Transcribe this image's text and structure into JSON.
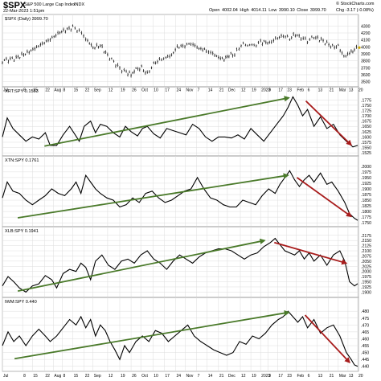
{
  "header": {
    "symbol": "$SPX",
    "description": "S&P 500 Large Cap Index",
    "exchange": "INDX",
    "datetime": "22-Mar-2023 1:51pm",
    "ohlc": "Open 4002.04  High 4014.11  Low 3990.10  Close 3999.70",
    "watermark": "© StockCharts.com",
    "change": "Chg -3.17 (-0.08%)"
  },
  "colors": {
    "up_arrow": "#4a7a2a",
    "down_arrow": "#a81c1c",
    "price_marker": "#c9a400",
    "line": "#000000",
    "grid": "#dddddd"
  },
  "x_axis": {
    "labels": [
      "Jul",
      "8",
      "15",
      "22",
      "Aug",
      "8",
      "15",
      "22",
      "Sep",
      "12",
      "19",
      "26",
      "Oct",
      "10",
      "17",
      "24",
      "Nov",
      "7",
      "14",
      "21",
      "Dec",
      "12",
      "19",
      "2023",
      "9",
      "17",
      "23",
      "Feb",
      "6",
      "13",
      "21",
      "Mar",
      "13",
      "20"
    ],
    "label_positions": [
      3,
      28,
      40,
      55,
      66,
      77,
      90,
      104,
      115,
      133,
      148,
      162,
      174,
      189,
      203,
      217,
      229,
      243,
      256,
      270,
      281,
      297,
      310,
      322,
      331,
      343,
      354,
      366,
      379,
      392,
      406,
      418,
      430,
      442
    ]
  },
  "chart_data": [
    {
      "type": "ohlc",
      "title": "$SPX (Daily) 3999.70",
      "ylim": [
        3450,
        4350
      ],
      "y_ticks": [
        3500,
        3600,
        3700,
        3800,
        3900,
        4000,
        4100,
        4200,
        4300
      ],
      "y_tick_labels": [
        "3500",
        "3600",
        "3700",
        "3800",
        "3900",
        "4000",
        "4100",
        "4200",
        "4300"
      ],
      "x": [
        3,
        20,
        36,
        50,
        62,
        74,
        90,
        98,
        106,
        115,
        124,
        133,
        148,
        156,
        162,
        168,
        175,
        182,
        190,
        197,
        205,
        212,
        219,
        226,
        236,
        246,
        255,
        263,
        270,
        277,
        283,
        290,
        298,
        306,
        314,
        322,
        333,
        343,
        350,
        358,
        365,
        372,
        380,
        388,
        397,
        404,
        411,
        418,
        425,
        432,
        438,
        443
      ],
      "values": [
        3800,
        3840,
        3930,
        4030,
        4110,
        4210,
        4280,
        4230,
        4120,
        3990,
        4020,
        3880,
        3690,
        3640,
        3600,
        3680,
        3700,
        3610,
        3760,
        3810,
        3850,
        3880,
        4000,
        4010,
        4050,
        3980,
        3950,
        3900,
        3850,
        3820,
        3880,
        3890,
        4030,
        4030,
        4020,
        4070,
        4060,
        4130,
        4160,
        4120,
        4180,
        4130,
        4090,
        4140,
        4100,
        4050,
        4000,
        4010,
        3860,
        3910,
        3960,
        3990
      ]
    },
    {
      "type": "line",
      "title": "XRT:SPY 0.1553",
      "ylim": [
        1518,
        1799
      ],
      "y_ticks": [
        1525,
        1550,
        1575,
        1600,
        1625,
        1650,
        1675,
        1700,
        1725,
        1750,
        1775
      ],
      "y_tick_labels": [
        ".1525",
        ".1550",
        ".1575",
        ".1600",
        ".1625",
        ".1650",
        ".1675",
        ".1700",
        ".1725",
        ".1750",
        ".1775"
      ],
      "x": [
        3,
        9,
        16,
        24,
        32,
        40,
        48,
        56,
        62,
        70,
        78,
        86,
        93,
        98,
        104,
        112,
        118,
        124,
        132,
        140,
        148,
        155,
        162,
        170,
        176,
        182,
        190,
        198,
        206,
        214,
        222,
        230,
        238,
        246,
        254,
        262,
        270,
        278,
        286,
        294,
        302,
        310,
        318,
        326,
        334,
        342,
        350,
        356,
        362,
        368,
        374,
        380,
        388,
        396,
        404,
        412,
        420,
        428,
        436,
        442
      ],
      "values": [
        1600,
        1690,
        1640,
        1610,
        1580,
        1600,
        1590,
        1620,
        1560,
        1560,
        1610,
        1650,
        1610,
        1580,
        1650,
        1675,
        1620,
        1660,
        1650,
        1620,
        1600,
        1650,
        1625,
        1605,
        1640,
        1650,
        1615,
        1595,
        1640,
        1630,
        1620,
        1610,
        1660,
        1640,
        1600,
        1580,
        1600,
        1600,
        1595,
        1610,
        1590,
        1640,
        1610,
        1580,
        1620,
        1660,
        1700,
        1740,
        1790,
        1750,
        1700,
        1730,
        1650,
        1695,
        1640,
        1660,
        1610,
        1580,
        1553,
        1560
      ]
    },
    {
      "type": "line",
      "title": "XTN:SPY 0.1761",
      "ylim": [
        1740,
        2010
      ],
      "y_ticks": [
        1750,
        1775,
        1800,
        1825,
        1850,
        1875,
        1900,
        1925,
        1950,
        1975,
        2000
      ],
      "y_tick_labels": [
        ".1750",
        ".1775",
        ".1800",
        ".1825",
        ".1850",
        ".1875",
        ".1900",
        ".1925",
        ".1950",
        ".1975",
        ".2000"
      ],
      "x": [
        3,
        9,
        16,
        24,
        32,
        40,
        48,
        56,
        64,
        72,
        80,
        88,
        94,
        100,
        106,
        112,
        118,
        124,
        132,
        140,
        148,
        156,
        164,
        172,
        180,
        188,
        196,
        204,
        212,
        220,
        228,
        236,
        244,
        252,
        260,
        268,
        276,
        284,
        292,
        300,
        308,
        316,
        324,
        332,
        340,
        346,
        352,
        358,
        364,
        370,
        376,
        382,
        388,
        396,
        404,
        410,
        418,
        426,
        432,
        438,
        442
      ],
      "values": [
        1860,
        1930,
        1890,
        1880,
        1850,
        1830,
        1850,
        1870,
        1900,
        1880,
        1870,
        1900,
        1930,
        1880,
        1960,
        1930,
        1900,
        1880,
        1860,
        1850,
        1820,
        1830,
        1860,
        1840,
        1880,
        1890,
        1860,
        1840,
        1850,
        1870,
        1890,
        1900,
        1950,
        1900,
        1860,
        1850,
        1830,
        1820,
        1820,
        1850,
        1840,
        1830,
        1870,
        1900,
        1880,
        1920,
        1950,
        1980,
        1940,
        1910,
        1940,
        1960,
        1930,
        1970,
        1920,
        1930,
        1890,
        1840,
        1790,
        1770,
        1761
      ]
    },
    {
      "type": "line",
      "title": "XLB:SPY 0.1941",
      "ylim": [
        1882,
        2178
      ],
      "y_ticks": [
        1900,
        1925,
        1950,
        1975,
        2000,
        2025,
        2050,
        2075,
        2100,
        2125,
        2150,
        2175
      ],
      "y_tick_labels": [
        ".1900",
        ".1925",
        ".1950",
        ".1975",
        ".2000",
        ".2025",
        ".2050",
        ".2075",
        ".2100",
        ".2125",
        ".2150",
        ".2175"
      ],
      "x": [
        3,
        10,
        17,
        24,
        32,
        40,
        48,
        56,
        64,
        70,
        78,
        86,
        94,
        100,
        106,
        112,
        118,
        126,
        134,
        142,
        150,
        158,
        166,
        174,
        182,
        190,
        198,
        206,
        214,
        222,
        230,
        238,
        246,
        254,
        262,
        270,
        278,
        286,
        294,
        302,
        310,
        318,
        326,
        334,
        340,
        346,
        352,
        358,
        364,
        370,
        376,
        382,
        388,
        396,
        404,
        412,
        420,
        426,
        432,
        438,
        442
      ],
      "values": [
        1930,
        1975,
        1950,
        1920,
        1900,
        1930,
        1940,
        1980,
        1960,
        1920,
        1990,
        2010,
        2000,
        2040,
        2020,
        1960,
        2050,
        2080,
        2030,
        2010,
        2050,
        2060,
        2040,
        2080,
        2100,
        2060,
        2040,
        2010,
        2050,
        2080,
        2060,
        2040,
        2070,
        2090,
        2100,
        2110,
        2110,
        2100,
        2080,
        2060,
        2080,
        2090,
        2120,
        2140,
        2160,
        2130,
        2100,
        2090,
        2080,
        2100,
        2060,
        2090,
        2050,
        2080,
        2030,
        2080,
        2100,
        2050,
        1950,
        1930,
        1941
      ]
    },
    {
      "type": "line",
      "title": "IWM:SPY 0.440",
      "ylim": [
        0.4375,
        0.4842
      ],
      "y_ticks": [
        0.44,
        0.445,
        0.45,
        0.455,
        0.46,
        0.465,
        0.47,
        0.475,
        0.48
      ],
      "y_tick_labels": [
        ".440",
        ".445",
        ".450",
        ".455",
        ".460",
        ".465",
        ".470",
        ".475",
        ".480"
      ],
      "x": [
        3,
        10,
        17,
        24,
        32,
        40,
        48,
        56,
        62,
        70,
        78,
        86,
        94,
        100,
        106,
        112,
        118,
        124,
        130,
        136,
        142,
        148,
        154,
        160,
        168,
        176,
        184,
        192,
        200,
        208,
        216,
        224,
        232,
        240,
        248,
        256,
        264,
        272,
        280,
        288,
        296,
        304,
        312,
        320,
        328,
        336,
        344,
        350,
        356,
        362,
        368,
        374,
        380,
        388,
        396,
        404,
        412,
        420,
        428,
        434,
        438,
        442
      ],
      "values": [
        0.455,
        0.465,
        0.458,
        0.462,
        0.455,
        0.462,
        0.467,
        0.462,
        0.458,
        0.462,
        0.468,
        0.474,
        0.47,
        0.476,
        0.468,
        0.474,
        0.462,
        0.47,
        0.466,
        0.458,
        0.452,
        0.445,
        0.455,
        0.45,
        0.458,
        0.462,
        0.458,
        0.466,
        0.464,
        0.458,
        0.462,
        0.466,
        0.47,
        0.462,
        0.458,
        0.455,
        0.452,
        0.45,
        0.448,
        0.45,
        0.458,
        0.456,
        0.462,
        0.46,
        0.464,
        0.47,
        0.474,
        0.476,
        0.48,
        0.476,
        0.472,
        0.476,
        0.468,
        0.474,
        0.464,
        0.468,
        0.47,
        0.462,
        0.45,
        0.445,
        0.441,
        0.44
      ]
    }
  ]
}
